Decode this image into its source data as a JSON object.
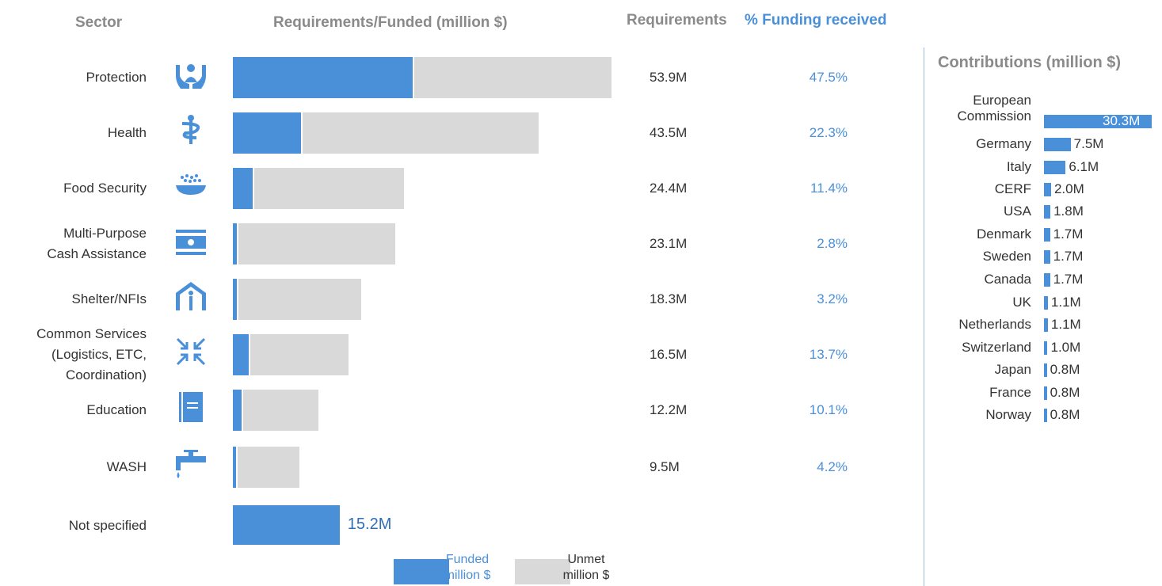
{
  "headers": {
    "sector": "Sector",
    "req_funded": "Requirements/Funded (million $)",
    "requirements": "Requirements",
    "funding_received": "% Funding received",
    "contributions": "Contributions (million $)"
  },
  "colors": {
    "funded": "#4a90d9",
    "unmet": "#d9d9d9"
  },
  "chart_data": [
    {
      "type": "bar",
      "title": "Requirements/Funded (million $)",
      "categories": [
        "Protection",
        "Health",
        "Food Security",
        "Multi-Purpose Cash Assistance",
        "Shelter/NFIs",
        "Common Services (Logistics, ETC, Coordination)",
        "Education",
        "WASH",
        "Not specified"
      ],
      "category_lines": [
        [
          "Protection"
        ],
        [
          "Health"
        ],
        [
          "Food Security"
        ],
        [
          "Multi-Purpose",
          "Cash Assistance"
        ],
        [
          "Shelter/NFIs"
        ],
        [
          "Common Services",
          "(Logistics, ETC,",
          "Coordination)"
        ],
        [
          "Education"
        ],
        [
          "WASH"
        ],
        [
          "Not specified"
        ]
      ],
      "icons": [
        "protection-icon",
        "health-icon",
        "food-security-icon",
        "cash-assistance-icon",
        "shelter-icon",
        "common-services-icon",
        "education-icon",
        "wash-icon",
        ""
      ],
      "requirements": [
        53.9,
        43.5,
        24.4,
        23.1,
        18.3,
        16.5,
        12.2,
        9.5,
        null
      ],
      "requirements_labels": [
        "53.9M",
        "43.5M",
        "24.4M",
        "23.1M",
        "18.3M",
        "16.5M",
        "12.2M",
        "9.5M",
        ""
      ],
      "pct_funded": [
        47.5,
        22.3,
        11.4,
        2.8,
        3.2,
        13.7,
        10.1,
        4.2,
        null
      ],
      "pct_labels": [
        "47.5%",
        "22.3%",
        "11.4%",
        "2.8%",
        "3.2%",
        "13.7%",
        "10.1%",
        "4.2%",
        ""
      ],
      "funded": [
        25.6,
        9.7,
        2.8,
        0.6,
        0.6,
        2.3,
        1.2,
        0.4,
        15.2
      ],
      "not_specified_label": "15.2M",
      "legend": {
        "funded": [
          "Funded",
          "million $"
        ],
        "unmet": [
          "Unmet",
          "million $"
        ]
      }
    },
    {
      "type": "bar",
      "title": "Contributions (million $)",
      "categories": [
        "European Commission",
        "Germany",
        "Italy",
        "CERF",
        "USA",
        "Denmark",
        "Sweden",
        "Canada",
        "UK",
        "Netherlands",
        "Switzerland",
        "Japan",
        "France",
        "Norway"
      ],
      "category_lines": [
        [
          "European",
          "Commission"
        ],
        [
          "Germany"
        ],
        [
          "Italy"
        ],
        [
          "CERF"
        ],
        [
          "USA"
        ],
        [
          "Denmark"
        ],
        [
          "Sweden"
        ],
        [
          "Canada"
        ],
        [
          "UK"
        ],
        [
          "Netherlands"
        ],
        [
          "Switzerland"
        ],
        [
          "Japan"
        ],
        [
          "France"
        ],
        [
          "Norway"
        ]
      ],
      "values": [
        30.3,
        7.5,
        6.1,
        2.0,
        1.8,
        1.7,
        1.7,
        1.7,
        1.1,
        1.1,
        1.0,
        0.8,
        0.8,
        0.8
      ],
      "labels": [
        "30.3M",
        "7.5M",
        "6.1M",
        "2.0M",
        "1.8M",
        "1.7M",
        "1.7M",
        "1.7M",
        "1.1M",
        "1.1M",
        "1.0M",
        "0.8M",
        "0.8M",
        "0.8M"
      ]
    }
  ]
}
